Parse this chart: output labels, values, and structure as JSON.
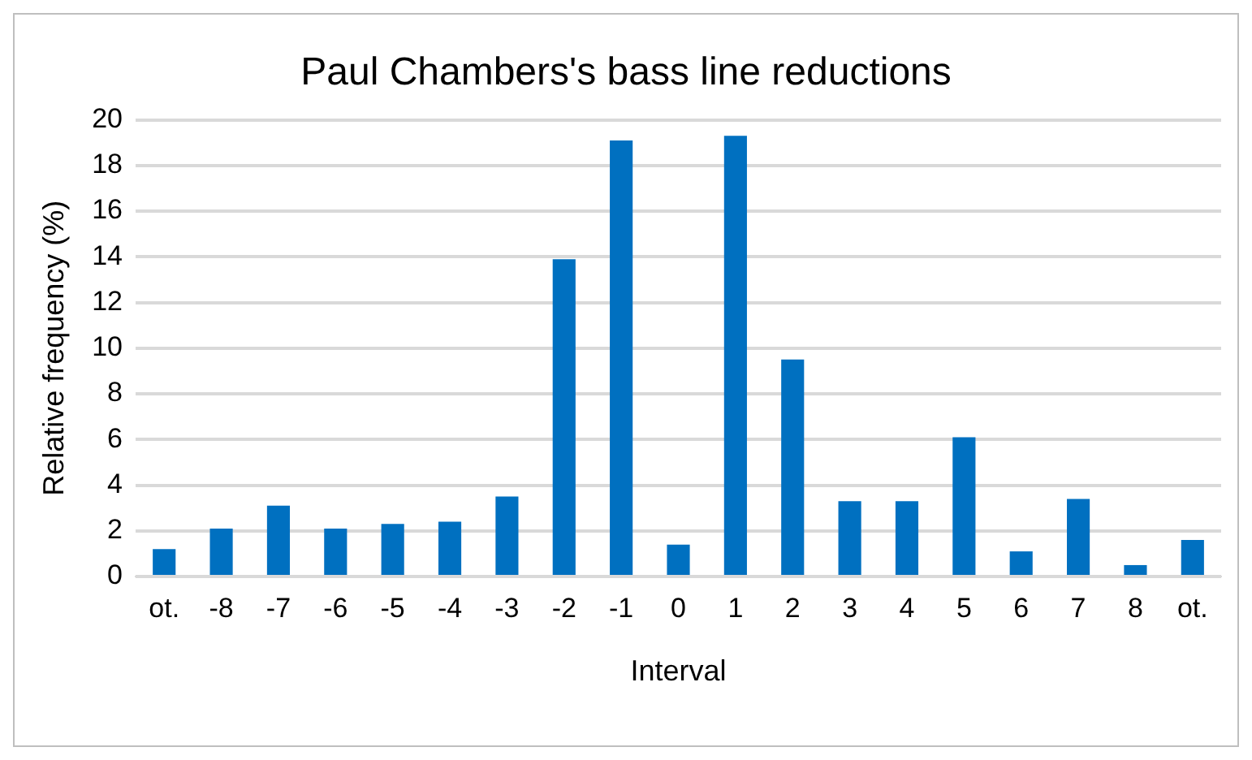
{
  "chart_data": {
    "type": "bar",
    "title": "Paul Chambers's bass line reductions",
    "xlabel": "Interval",
    "ylabel": "Relative frequency (%)",
    "categories": [
      "ot.",
      "-8",
      "-7",
      "-6",
      "-5",
      "-4",
      "-3",
      "-2",
      "-1",
      "0",
      "1",
      "2",
      "3",
      "4",
      "5",
      "6",
      "7",
      "8",
      "ot."
    ],
    "values": [
      1.2,
      2.1,
      3.1,
      2.1,
      2.3,
      2.4,
      3.5,
      13.9,
      19.1,
      1.4,
      19.3,
      9.5,
      3.3,
      3.3,
      6.1,
      1.1,
      3.4,
      0.5,
      1.6
    ],
    "color": "#0070c0",
    "ylim": [
      0,
      20
    ],
    "yticks": [
      0,
      2,
      4,
      6,
      8,
      10,
      12,
      14,
      16,
      18,
      20
    ],
    "grid": "y",
    "legend": false
  }
}
